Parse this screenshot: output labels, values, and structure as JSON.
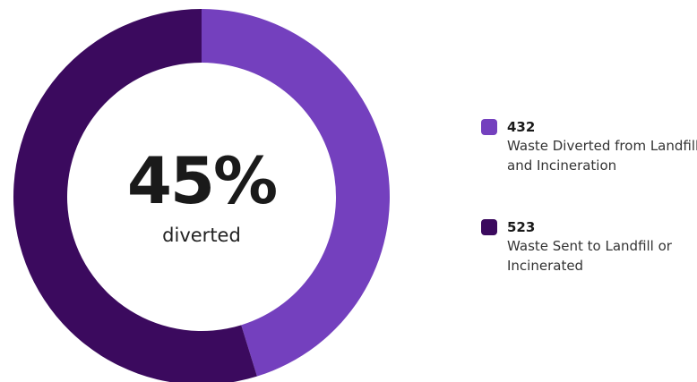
{
  "center": {
    "percent": "45%",
    "subtitle": "diverted"
  },
  "legend": [
    {
      "value": "432",
      "label": "Waste Diverted from Landfill and Incineration",
      "color": "#7440be"
    },
    {
      "value": "523",
      "label": "Waste Sent to Landfill or Incinerated",
      "color": "#3b0a5e"
    }
  ],
  "chart_data": {
    "type": "pie",
    "variant": "donut",
    "categories": [
      "Waste Diverted from Landfill and Incineration",
      "Waste Sent to Landfill or Incinerated"
    ],
    "values": [
      432,
      523
    ],
    "colors": [
      "#7440be",
      "#3b0a5e"
    ],
    "start_angle": "12 o'clock",
    "direction": "clockwise",
    "legend_position": "right"
  }
}
